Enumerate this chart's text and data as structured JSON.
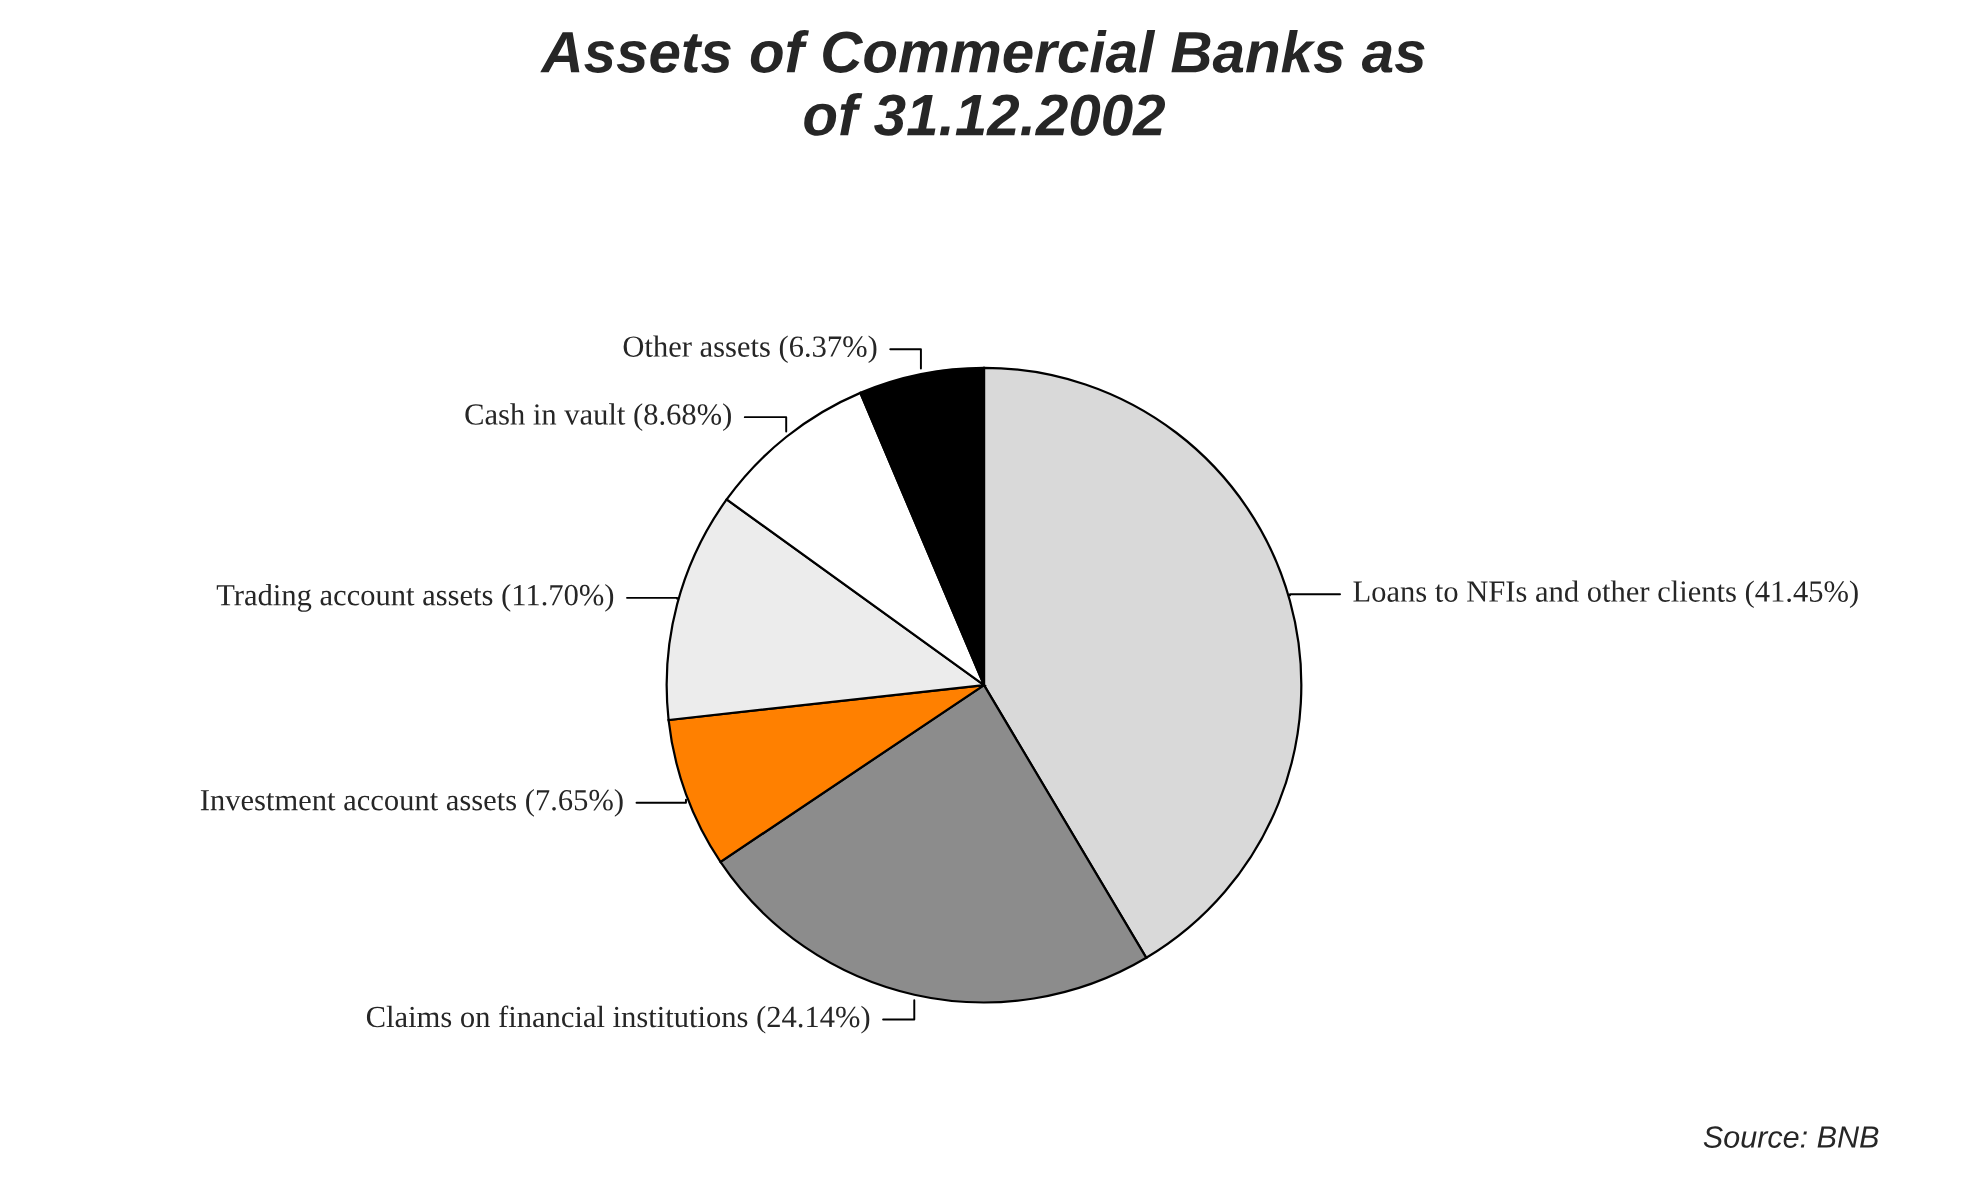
{
  "chart_data": {
    "type": "pie",
    "title": "Assets of Commercial Banks as\nof 31.12.2002",
    "categories": [
      "Loans to NFIs and other clients (41.45%)",
      "Claims on financial institutions (24.14%)",
      "Investment account assets (7.65%)",
      "Trading account assets (11.70%)",
      "Cash in vault (8.68%)",
      "Other assets (6.37%)"
    ],
    "values": [
      41.45,
      24.14,
      7.65,
      11.7,
      8.68,
      6.37
    ],
    "colors": [
      "#d9d9d9",
      "#8c8c8c",
      "#ff8000",
      "#ececec",
      "#ffffff",
      "#000000"
    ],
    "annotations": [
      "Source: BNB"
    ]
  }
}
